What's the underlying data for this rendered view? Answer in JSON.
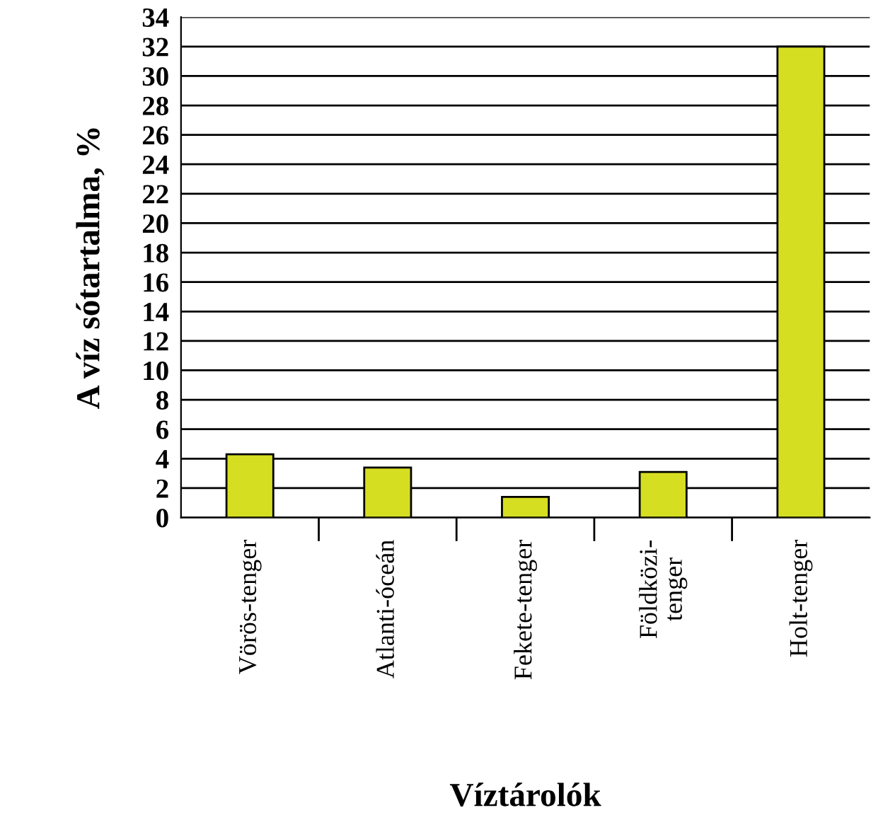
{
  "chart_data": {
    "type": "bar",
    "xlabel": "Víztárolók",
    "ylabel": "A víz sótartalma, %",
    "categories": [
      "Vörös-tenger",
      "Atlanti-óceán",
      "Fekete-tenger",
      "Földközi-\ntenger",
      "Holt-tenger"
    ],
    "values": [
      4.3,
      3.4,
      1.4,
      3.1,
      32
    ],
    "color": "#d6de22",
    "ylim": [
      0,
      34
    ],
    "yticks": [
      0,
      2,
      4,
      6,
      8,
      10,
      12,
      14,
      16,
      18,
      20,
      22,
      24,
      26,
      28,
      30,
      32,
      34
    ],
    "grid": "y"
  }
}
